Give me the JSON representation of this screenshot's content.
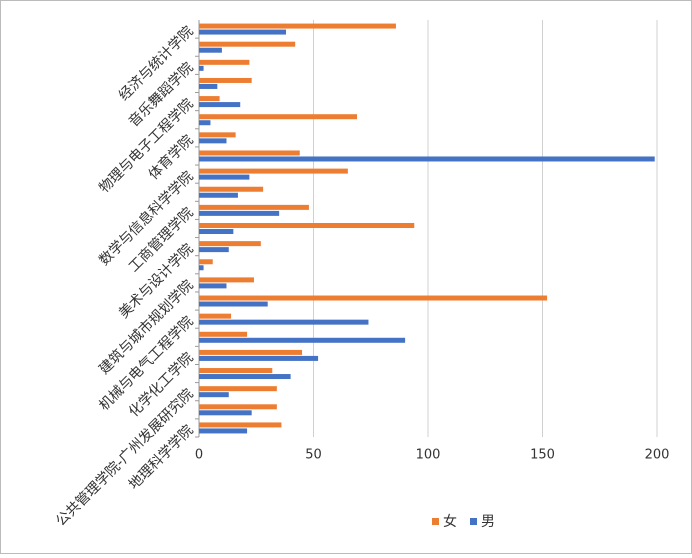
{
  "chart_data": {
    "type": "bar",
    "orientation": "horizontal",
    "categories": [
      "地理科学学院",
      null,
      "公共管理学院-广州发展研究院",
      null,
      "化学化工学院",
      null,
      "机械与电气工程学院",
      null,
      "建筑与城市规划学院",
      null,
      "美术与设计学院",
      null,
      "工商管理学院",
      null,
      "数学与信息科学学院",
      null,
      "体育学院",
      null,
      "物理与电子工程学院",
      null,
      "音乐舞蹈学院",
      null,
      "经济与统计学院"
    ],
    "series": [
      {
        "name": "女",
        "color": "#ed7d31",
        "values": [
          36,
          34,
          34,
          32,
          45,
          21,
          14,
          152,
          24,
          6,
          27,
          94,
          48,
          28,
          65,
          44,
          16,
          69,
          9,
          23,
          22,
          42,
          86
        ]
      },
      {
        "name": "男",
        "color": "#4472c4",
        "values": [
          21,
          23,
          13,
          40,
          52,
          90,
          74,
          30,
          12,
          2,
          13,
          15,
          35,
          17,
          22,
          199,
          12,
          5,
          18,
          8,
          2,
          10,
          38
        ]
      }
    ],
    "xlim": [
      0,
      200
    ],
    "xticks": [
      0,
      50,
      100,
      150,
      200
    ],
    "grid": true,
    "legend": "bottom"
  }
}
